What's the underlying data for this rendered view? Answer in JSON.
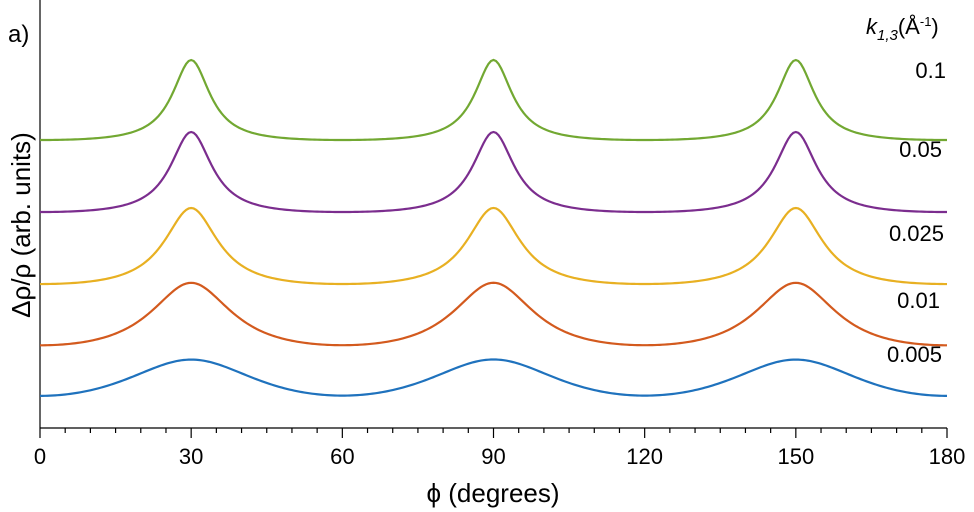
{
  "panel_label": "a)",
  "chart_data": {
    "type": "line",
    "title": "",
    "xlabel": "ϕ (degrees)",
    "ylabel": "Δρ/ρ (arb. units)",
    "xlim": [
      0,
      180
    ],
    "xticks": [
      0,
      30,
      60,
      90,
      120,
      150,
      180
    ],
    "yticks": [],
    "y_units": "arbitrary (curves vertically offset)",
    "legend": {
      "title_main": "k",
      "title_sub": "1,3",
      "title_unit_pre": "(Å",
      "title_unit_sup": "-1",
      "title_unit_post": ")",
      "placement": "right, next to each curve"
    },
    "peak_positions": [
      30,
      90,
      150
    ],
    "minimum_positions": [
      0,
      60,
      120,
      180
    ],
    "series": [
      {
        "name": "0.1",
        "color": "#72a832",
        "offset": 4.0,
        "amplitude": 1.0,
        "half_width_deg": 4.5
      },
      {
        "name": "0.05",
        "color": "#7b2d8e",
        "offset": 3.0,
        "amplitude": 1.0,
        "half_width_deg": 5.0
      },
      {
        "name": "0.025",
        "color": "#e8b022",
        "offset": 2.0,
        "amplitude": 0.95,
        "half_width_deg": 6.5
      },
      {
        "name": "0.01",
        "color": "#d35a1e",
        "offset": 1.15,
        "amplitude": 0.78,
        "half_width_deg": 10
      },
      {
        "name": "0.005",
        "color": "#1f72bd",
        "offset": 0.45,
        "amplitude": 0.45,
        "half_width_deg": 18
      }
    ]
  }
}
